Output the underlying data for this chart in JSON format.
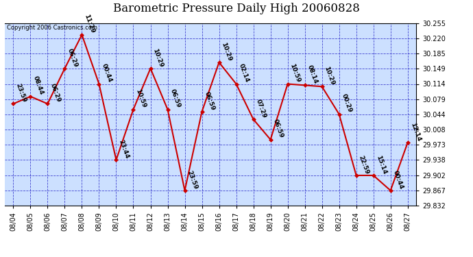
{
  "title": "Barometric Pressure Daily High 20060828",
  "copyright_text": "Copyright 2006 Castronics.com",
  "background_color": "#ffffff",
  "plot_bg_color": "#cce0ff",
  "grid_color": "#3333cc",
  "line_color": "#cc0000",
  "marker_color": "#cc0000",
  "text_color": "#000000",
  "ylim": [
    29.832,
    30.255
  ],
  "yticks": [
    29.832,
    29.867,
    29.902,
    29.938,
    29.973,
    30.008,
    30.044,
    30.079,
    30.114,
    30.149,
    30.185,
    30.22,
    30.255
  ],
  "dates": [
    "08/04",
    "08/05",
    "08/06",
    "08/07",
    "08/08",
    "08/09",
    "08/10",
    "08/11",
    "08/12",
    "08/13",
    "08/14",
    "08/15",
    "08/16",
    "08/17",
    "08/18",
    "08/19",
    "08/20",
    "08/21",
    "08/22",
    "08/23",
    "08/24",
    "08/25",
    "08/26",
    "08/27"
  ],
  "values": [
    30.068,
    30.085,
    30.068,
    30.15,
    30.228,
    30.114,
    29.938,
    30.055,
    30.15,
    30.055,
    29.867,
    30.05,
    30.164,
    30.114,
    30.032,
    29.985,
    30.114,
    30.111,
    30.108,
    30.044,
    29.902,
    29.902,
    29.867,
    29.978
  ],
  "point_labels": [
    "23:59",
    "08:44",
    "06:29",
    "06:29",
    "11:29",
    "00:44",
    "23:44",
    "10:59",
    "10:29",
    "06:59",
    "23:59",
    "06:59",
    "10:29",
    "02:14",
    "07:29",
    "06:59",
    "10:59",
    "08:14",
    "10:29",
    "00:29",
    "22:59",
    "15:14",
    "00:44",
    "12:14"
  ],
  "title_fontsize": 12,
  "tick_fontsize": 7,
  "label_fontsize": 6.5,
  "fig_width": 6.9,
  "fig_height": 3.75,
  "dpi": 100
}
